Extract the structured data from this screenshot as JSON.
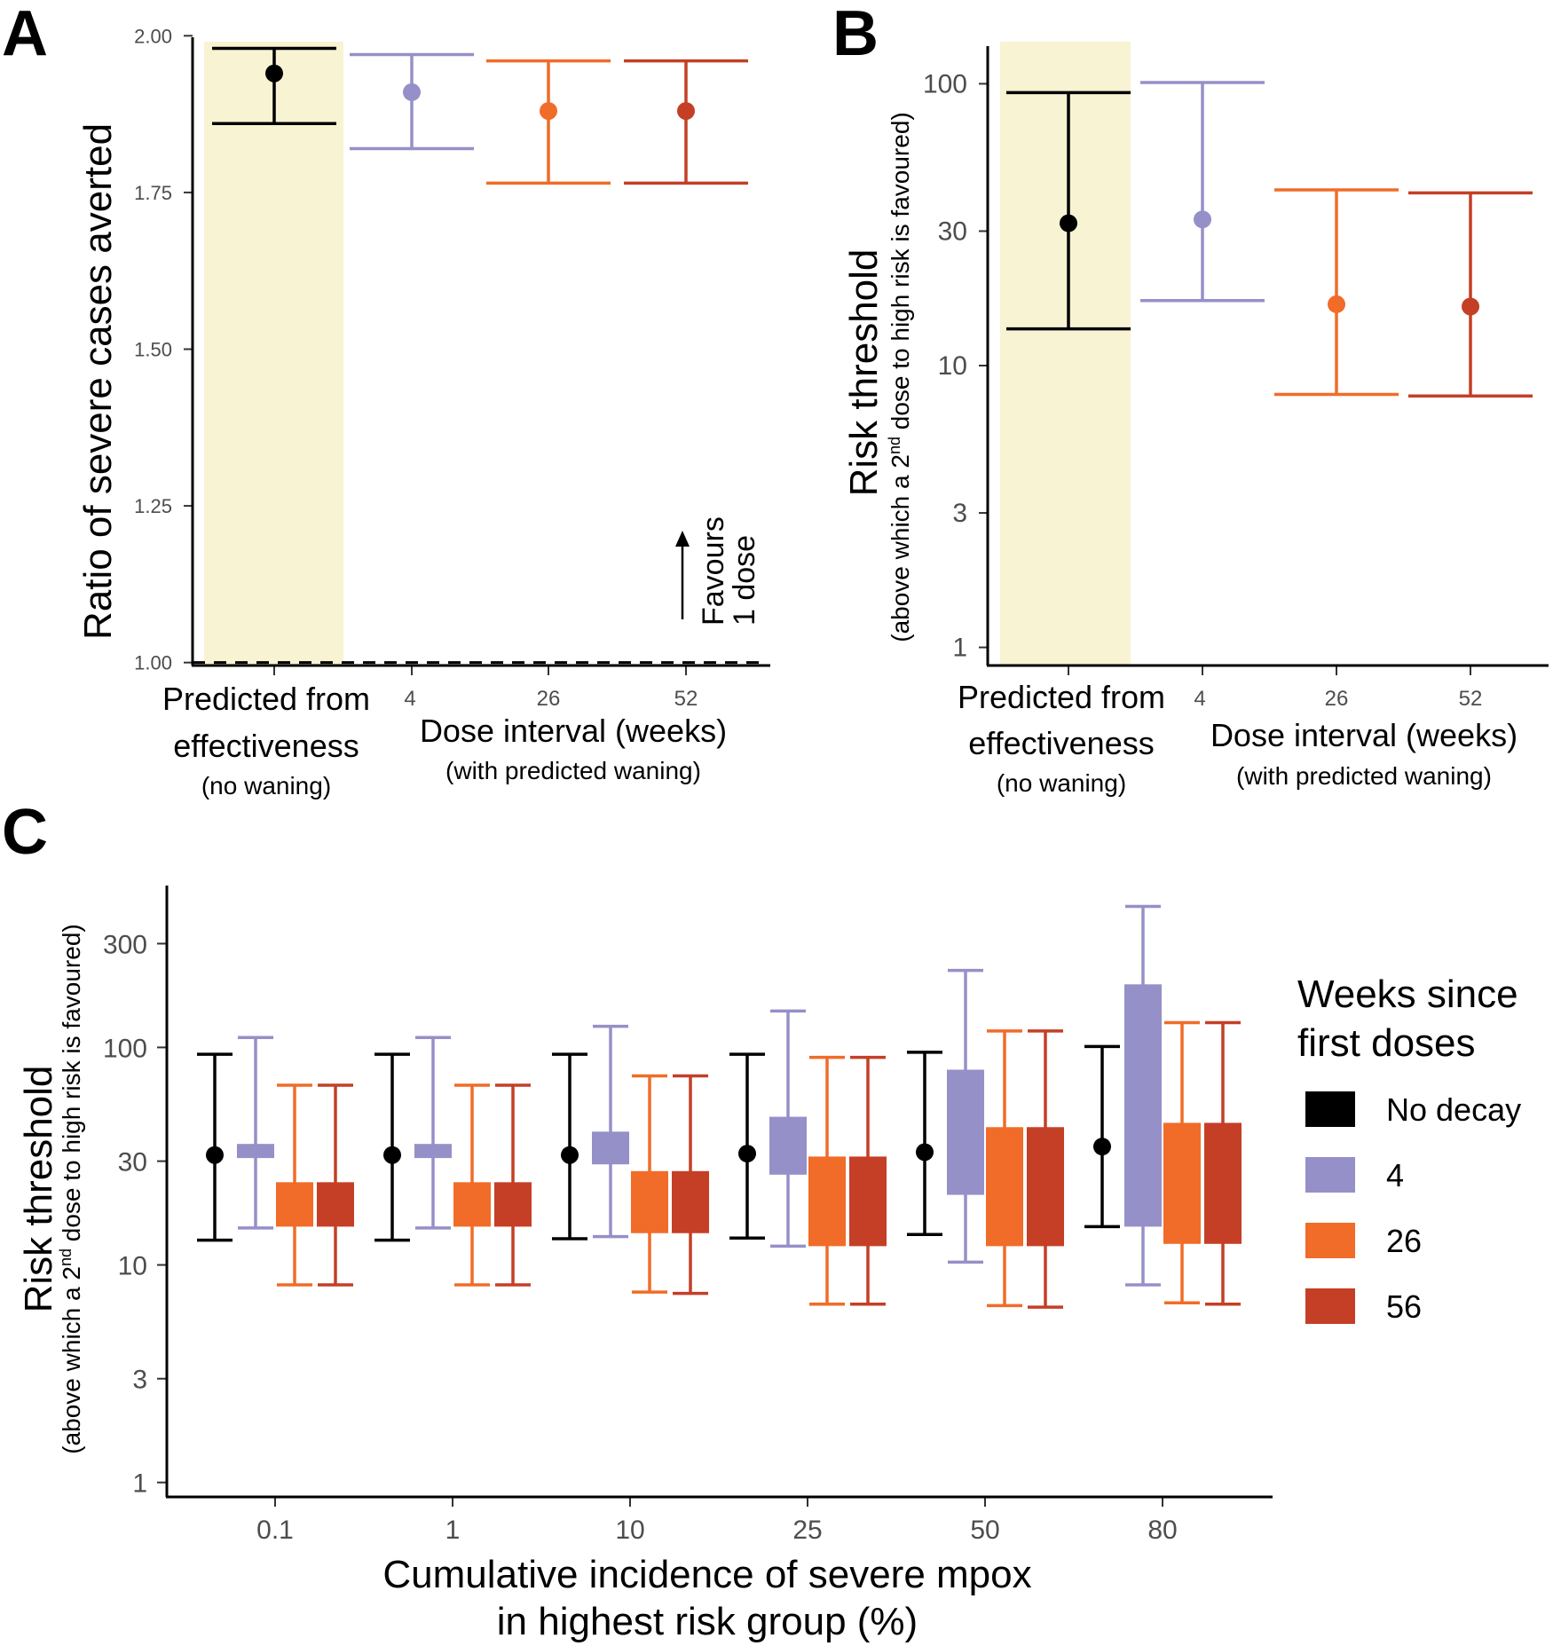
{
  "panels": {
    "A": {
      "letter": "A",
      "ylabel": "Ratio of severe cases averted",
      "cat_label_line1": "Predicted from",
      "cat_label_line2": "effectiveness",
      "cat_label_line3": "(no waning)",
      "xlabel_line1": "Dose interval (weeks)",
      "xlabel_line2": "(with predicted waning)",
      "annotation_line1": "Favours",
      "annotation_line2": "1 dose"
    },
    "B": {
      "letter": "B",
      "ylabel_line1": "Risk threshold",
      "ylabel_line2_pre": "(above which a 2",
      "ylabel_line2_sup": "nd",
      "ylabel_line2_post": " dose to high risk is favoured)",
      "cat_label_line1": "Predicted from",
      "cat_label_line2": "effectiveness",
      "cat_label_line3": "(no waning)",
      "xlabel_line1": "Dose interval (weeks)",
      "xlabel_line2": "(with predicted waning)"
    },
    "C": {
      "letter": "C",
      "ylabel_line1": "Risk threshold",
      "ylabel_line2_pre": "(above which a 2",
      "ylabel_line2_sup": "nd",
      "ylabel_line2_post": " dose to high risk is favoured)",
      "xlabel_line1": "Cumulative incidence of severe mpox",
      "xlabel_line2": "in highest risk group (%)",
      "legend_title_line1": "Weeks since",
      "legend_title_line2": "first doses"
    }
  },
  "chart_data": [
    {
      "panel": "A",
      "type": "scatter",
      "subtype": "pointrange",
      "title": "",
      "xlabel": "Dose interval (weeks) (with predicted waning)",
      "ylabel": "Ratio of severe cases averted",
      "ylim": [
        0.95,
        2.05
      ],
      "y_ticks": [
        1.0,
        1.25,
        1.5,
        1.75,
        2.0
      ],
      "y_tick_labels": [
        "1.00",
        "1.25",
        "1.50",
        "1.75",
        "2.00"
      ],
      "categories": [
        "Predicted from effectiveness",
        "4",
        "26",
        "52"
      ],
      "x_tick_labels": [
        "",
        "4",
        "26",
        "52"
      ],
      "points": [
        {
          "category": "Predicted from effectiveness",
          "y": 1.94,
          "lower": 1.86,
          "upper": 1.98,
          "color": "#000000"
        },
        {
          "category": "4",
          "y": 1.91,
          "lower": 1.82,
          "upper": 1.97,
          "color": "#9590c8"
        },
        {
          "category": "26",
          "y": 1.88,
          "lower": 1.765,
          "upper": 1.96,
          "color": "#f06c28"
        },
        {
          "category": "52",
          "y": 1.88,
          "lower": 1.765,
          "upper": 1.96,
          "color": "#c43f26"
        }
      ],
      "reference_line": {
        "y": 1.0,
        "style": "dashed"
      },
      "highlight_category": "Predicted from effectiveness",
      "highlight_color": "#f8f3d2",
      "grid": false
    },
    {
      "panel": "B",
      "type": "scatter",
      "subtype": "pointrange",
      "title": "",
      "xlabel": "Dose interval (weeks) (with predicted waning)",
      "ylabel": "Risk threshold (above which a 2nd dose to high risk is favoured)",
      "yscale": "log",
      "ylim": [
        0.85,
        140
      ],
      "y_ticks": [
        1,
        3,
        10,
        30,
        100
      ],
      "y_tick_labels": [
        "1",
        "3",
        "10",
        "30",
        "100"
      ],
      "categories": [
        "Predicted from effectiveness",
        "4",
        "26",
        "52"
      ],
      "x_tick_labels": [
        "",
        "4",
        "26",
        "52"
      ],
      "points": [
        {
          "category": "Predicted from effectiveness",
          "y": 32,
          "lower": 13.5,
          "upper": 93,
          "color": "#000000"
        },
        {
          "category": "4",
          "y": 33,
          "lower": 17,
          "upper": 101,
          "color": "#9590c8"
        },
        {
          "category": "26",
          "y": 16.5,
          "lower": 7.9,
          "upper": 42,
          "color": "#f06c28"
        },
        {
          "category": "52",
          "y": 16.2,
          "lower": 7.8,
          "upper": 41,
          "color": "#c43f26"
        }
      ],
      "highlight_category": "Predicted from effectiveness",
      "highlight_color": "#f8f3d2",
      "grid": false
    },
    {
      "panel": "C",
      "type": "box",
      "title": "",
      "xlabel": "Cumulative incidence of severe mpox in highest risk group (%)",
      "ylabel": "Risk threshold (above which a 2nd dose to high risk is favoured)",
      "yscale": "log",
      "ylim": [
        0.85,
        560
      ],
      "y_ticks": [
        1,
        3,
        10,
        30,
        100,
        300
      ],
      "y_tick_labels": [
        "1",
        "3",
        "10",
        "30",
        "100",
        "300"
      ],
      "categories": [
        "0.1",
        "1",
        "10",
        "25",
        "50",
        "80"
      ],
      "legend": {
        "title": "Weeks since first doses",
        "entries": [
          {
            "label": "No decay",
            "color": "#000000"
          },
          {
            "label": "4",
            "color": "#9590c8"
          },
          {
            "label": "26",
            "color": "#f06c28"
          },
          {
            "label": "56",
            "color": "#c43f26"
          }
        ],
        "position": "right"
      },
      "series": [
        {
          "name": "No decay",
          "color": "#000000",
          "style": "pointrange",
          "values": [
            {
              "category": "0.1",
              "mid": 32,
              "lower": 13,
              "upper": 93
            },
            {
              "category": "1",
              "mid": 32,
              "lower": 13,
              "upper": 93
            },
            {
              "category": "10",
              "mid": 32,
              "lower": 13.2,
              "upper": 93
            },
            {
              "category": "25",
              "mid": 32.5,
              "lower": 13.3,
              "upper": 93
            },
            {
              "category": "50",
              "mid": 33,
              "lower": 13.8,
              "upper": 95
            },
            {
              "category": "80",
              "mid": 35,
              "lower": 15,
              "upper": 101
            }
          ]
        },
        {
          "name": "4",
          "color": "#9590c8",
          "style": "box",
          "values": [
            {
              "category": "0.1",
              "whisker_low": 14.8,
              "q1": 31,
              "q3": 36,
              "whisker_high": 111
            },
            {
              "category": "1",
              "whisker_low": 14.8,
              "q1": 31,
              "q3": 36,
              "whisker_high": 111
            },
            {
              "category": "10",
              "whisker_low": 13.5,
              "q1": 29,
              "q3": 41,
              "whisker_high": 125
            },
            {
              "category": "25",
              "whisker_low": 12.2,
              "q1": 26,
              "q3": 48,
              "whisker_high": 147
            },
            {
              "category": "50",
              "whisker_low": 10.3,
              "q1": 21,
              "q3": 79,
              "whisker_high": 226
            },
            {
              "category": "80",
              "whisker_low": 8.1,
              "q1": 15,
              "q3": 195,
              "whisker_high": 445
            }
          ]
        },
        {
          "name": "26",
          "color": "#f06c28",
          "style": "box",
          "values": [
            {
              "category": "0.1",
              "whisker_low": 8.1,
              "q1": 15,
              "q3": 24,
              "whisker_high": 67
            },
            {
              "category": "1",
              "whisker_low": 8.1,
              "q1": 15,
              "q3": 24,
              "whisker_high": 67
            },
            {
              "category": "10",
              "whisker_low": 7.5,
              "q1": 14,
              "q3": 27,
              "whisker_high": 74
            },
            {
              "category": "25",
              "whisker_low": 6.6,
              "q1": 12.2,
              "q3": 31.5,
              "whisker_high": 90
            },
            {
              "category": "50",
              "whisker_low": 6.5,
              "q1": 12.2,
              "q3": 43,
              "whisker_high": 119
            },
            {
              "category": "80",
              "whisker_low": 6.7,
              "q1": 12.5,
              "q3": 45,
              "whisker_high": 130
            }
          ]
        },
        {
          "name": "56",
          "color": "#c43f26",
          "style": "box",
          "values": [
            {
              "category": "0.1",
              "whisker_low": 8.1,
              "q1": 15,
              "q3": 24,
              "whisker_high": 67
            },
            {
              "category": "1",
              "whisker_low": 8.1,
              "q1": 15,
              "q3": 24,
              "whisker_high": 67
            },
            {
              "category": "10",
              "whisker_low": 7.4,
              "q1": 14,
              "q3": 27,
              "whisker_high": 74
            },
            {
              "category": "25",
              "whisker_low": 6.6,
              "q1": 12.2,
              "q3": 31.5,
              "whisker_high": 90
            },
            {
              "category": "50",
              "whisker_low": 6.4,
              "q1": 12.2,
              "q3": 43,
              "whisker_high": 119
            },
            {
              "category": "80",
              "whisker_low": 6.6,
              "q1": 12.5,
              "q3": 45,
              "whisker_high": 130
            }
          ]
        }
      ],
      "grid": false
    }
  ]
}
